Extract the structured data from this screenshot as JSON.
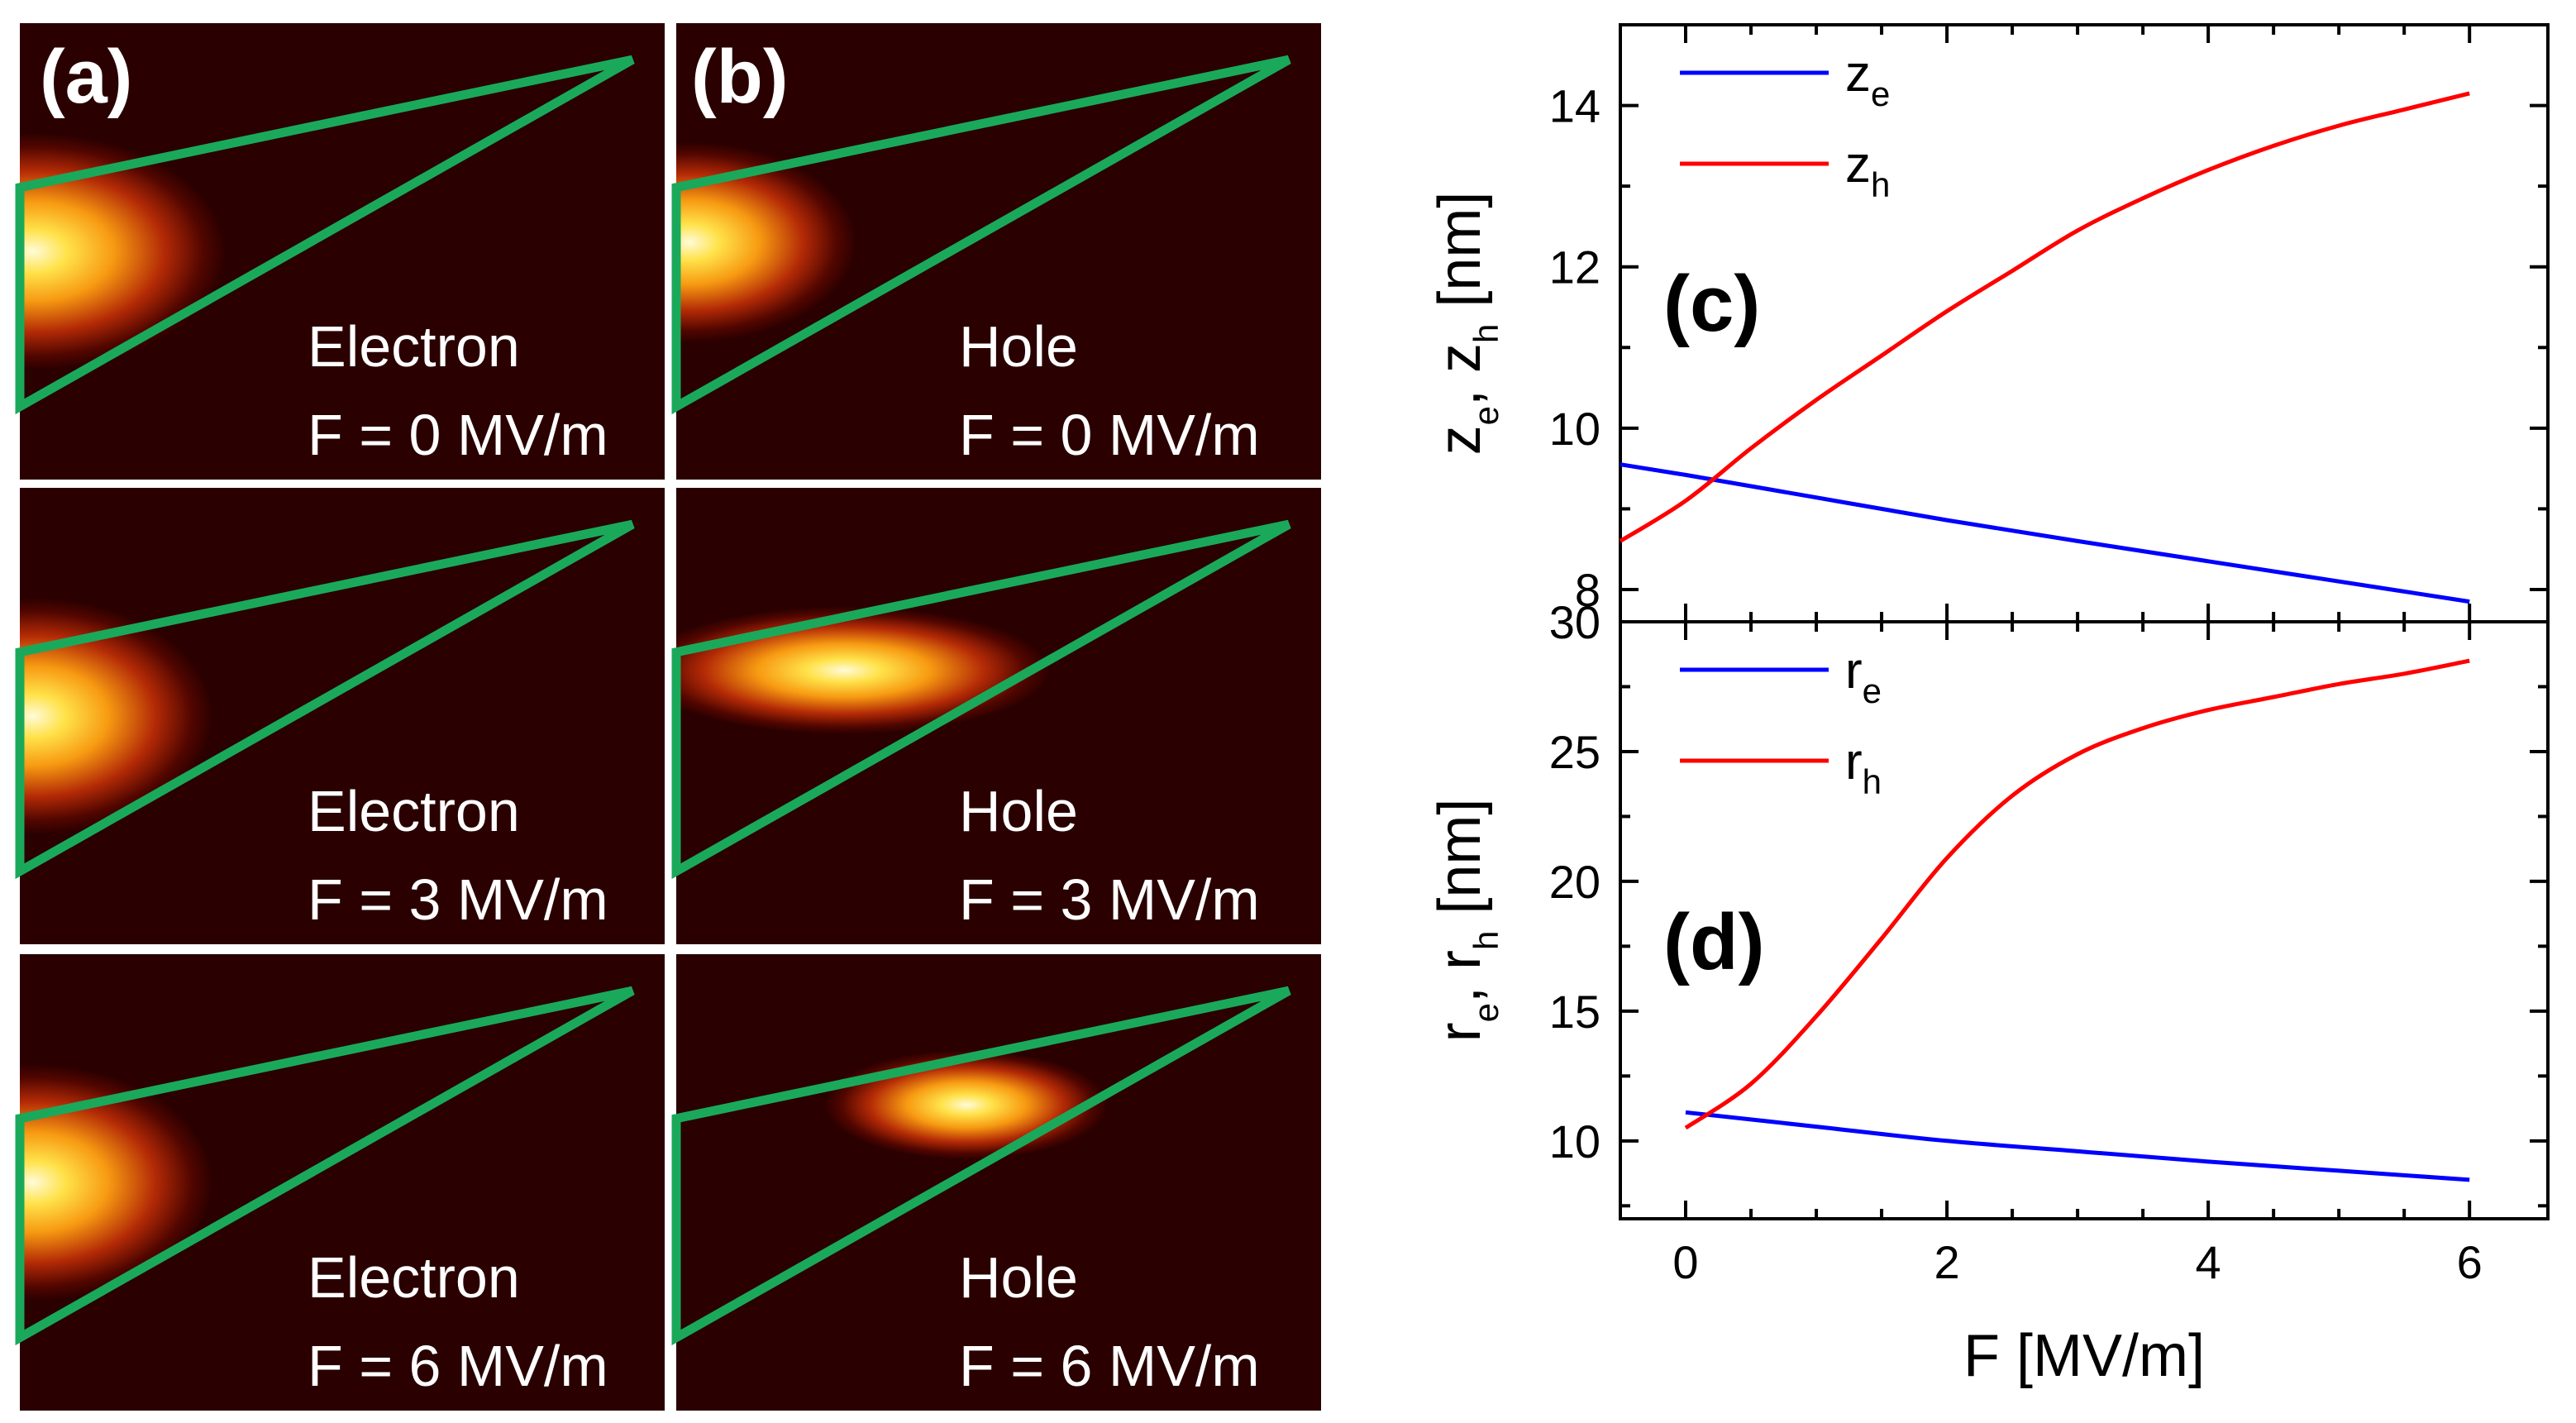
{
  "maps": {
    "panel_a_tag": "(a)",
    "panel_b_tag": "(b)",
    "cells": [
      {
        "name": "electron-f0",
        "particle": "Electron",
        "field_label": "F = 0 MV/m",
        "F": 0,
        "peak": [
          0.02,
          0.5
        ],
        "spread": [
          0.3,
          0.26
        ]
      },
      {
        "name": "hole-f0",
        "particle": "Hole",
        "field_label": "F = 0 MV/m",
        "F": 0,
        "peak": [
          0.02,
          0.48
        ],
        "spread": [
          0.26,
          0.22
        ]
      },
      {
        "name": "electron-f3",
        "particle": "Electron",
        "field_label": "F = 3 MV/m",
        "F": 3,
        "peak": [
          0.02,
          0.5
        ],
        "spread": [
          0.28,
          0.26
        ]
      },
      {
        "name": "hole-f3",
        "particle": "Hole",
        "field_label": "F = 3 MV/m",
        "F": 3,
        "peak": [
          0.26,
          0.4
        ],
        "spread": [
          0.32,
          0.14
        ]
      },
      {
        "name": "electron-f6",
        "particle": "Electron",
        "field_label": "F = 6 MV/m",
        "F": 6,
        "peak": [
          0.02,
          0.5
        ],
        "spread": [
          0.28,
          0.26
        ]
      },
      {
        "name": "hole-f6",
        "particle": "Hole",
        "field_label": "F = 6 MV/m",
        "F": 6,
        "peak": [
          0.45,
          0.33
        ],
        "spread": [
          0.22,
          0.12
        ]
      }
    ],
    "colors": {
      "background": "#2a0000",
      "triangle": "#1aa95b",
      "text": "#ffffff"
    }
  },
  "chart_data": [
    {
      "type": "line",
      "panel_label": "(c)",
      "ylabel_main": [
        "z",
        "z",
        "[nm]"
      ],
      "ylabel_subs": [
        "e",
        "h"
      ],
      "ylabel_sep": ",",
      "xlim": [
        -0.5,
        6.6
      ],
      "ylim": [
        7.6,
        15.0
      ],
      "yticks": [
        8,
        10,
        12,
        14
      ],
      "ytick_labels": [
        "8",
        "10",
        "12",
        "14"
      ],
      "legend_position": "top-left",
      "series": [
        {
          "name": "z_e",
          "label_main": "z",
          "label_sub": "e",
          "color": "#0000ff",
          "x": [
            -0.5,
            0,
            1,
            2,
            3,
            4,
            5,
            6
          ],
          "y": [
            9.55,
            9.42,
            9.14,
            8.86,
            8.6,
            8.35,
            8.1,
            7.85
          ]
        },
        {
          "name": "z_h",
          "label_main": "z",
          "label_sub": "h",
          "color": "#ff0000",
          "x": [
            -0.5,
            0,
            0.5,
            1,
            1.5,
            2,
            2.5,
            3,
            3.5,
            4,
            4.5,
            5,
            5.5,
            6
          ],
          "y": [
            8.6,
            9.1,
            9.75,
            10.35,
            10.9,
            11.45,
            11.95,
            12.45,
            12.85,
            13.2,
            13.5,
            13.75,
            13.95,
            14.15
          ]
        }
      ]
    },
    {
      "type": "line",
      "panel_label": "(d)",
      "ylabel_main": [
        "r",
        "r",
        "[nm]"
      ],
      "ylabel_subs": [
        "e",
        "h"
      ],
      "ylabel_sep": ",",
      "xlabel": "F [MV/m]",
      "xlim": [
        -0.5,
        6.6
      ],
      "ylim": [
        7.0,
        30.0
      ],
      "yticks": [
        10,
        15,
        20,
        25,
        30
      ],
      "ytick_labels": [
        "10",
        "15",
        "20",
        "25",
        "30"
      ],
      "xticks": [
        0,
        2,
        4,
        6
      ],
      "xtick_labels": [
        "0",
        "2",
        "4",
        "6"
      ],
      "legend_position": "top-left",
      "series": [
        {
          "name": "r_e",
          "label_main": "r",
          "label_sub": "e",
          "color": "#0000ff",
          "x": [
            0,
            1,
            2,
            3,
            4,
            5,
            6
          ],
          "y": [
            11.1,
            10.55,
            10.0,
            9.6,
            9.2,
            8.85,
            8.5
          ]
        },
        {
          "name": "r_h",
          "label_main": "r",
          "label_sub": "h",
          "color": "#ff0000",
          "x": [
            0,
            0.5,
            1,
            1.5,
            2,
            2.5,
            3,
            3.5,
            4,
            4.5,
            5,
            5.5,
            6
          ],
          "y": [
            10.5,
            12.2,
            14.8,
            17.8,
            20.9,
            23.3,
            24.9,
            25.9,
            26.6,
            27.1,
            27.6,
            28.0,
            28.5
          ]
        }
      ]
    }
  ]
}
